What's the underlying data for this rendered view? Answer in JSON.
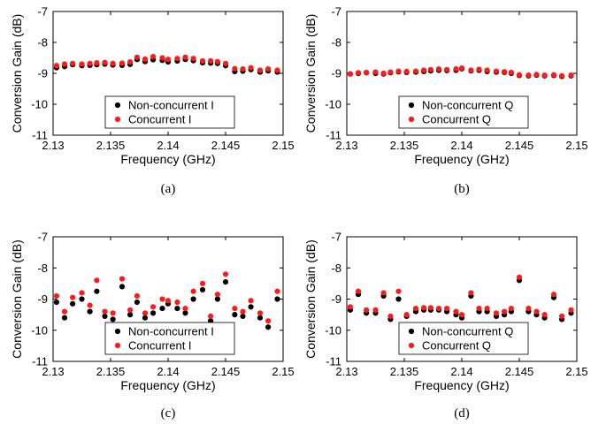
{
  "colors": {
    "series_black": "#000000",
    "series_red": "#ff1a1a"
  },
  "chart_data": [
    {
      "type": "scatter",
      "caption": "(a)",
      "xlabel": "Frequency (GHz)",
      "ylabel": "Conversion Gain (dB)",
      "xlim": [
        2.13,
        2.15
      ],
      "ylim": [
        -11,
        -7
      ],
      "xticks": [
        2.13,
        2.135,
        2.14,
        2.145,
        2.15
      ],
      "xtick_labels": [
        "2.13",
        "2.135",
        "2.14",
        "2.145",
        "2.15"
      ],
      "yticks": [
        -7,
        -8,
        -9,
        -10,
        -11
      ],
      "ytick_labels": [
        "-7",
        "-8",
        "-9",
        "-10",
        "-11"
      ],
      "grid": false,
      "legend_position": "bottom-center",
      "series": [
        {
          "name": "Non-concurrent I",
          "color": "#000000",
          "x": [
            2.1303,
            2.131,
            2.1317,
            2.1325,
            2.1332,
            2.1338,
            2.1345,
            2.1352,
            2.136,
            2.1367,
            2.1373,
            2.138,
            2.1387,
            2.1395,
            2.14,
            2.1408,
            2.1415,
            2.1422,
            2.143,
            2.1437,
            2.1443,
            2.145,
            2.1458,
            2.1465,
            2.1472,
            2.148,
            2.1487,
            2.1495
          ],
          "y": [
            -8.82,
            -8.78,
            -8.72,
            -8.75,
            -8.74,
            -8.72,
            -8.7,
            -8.73,
            -8.74,
            -8.71,
            -8.55,
            -8.62,
            -8.56,
            -8.58,
            -8.63,
            -8.6,
            -8.55,
            -8.59,
            -8.66,
            -8.67,
            -8.68,
            -8.75,
            -8.94,
            -8.93,
            -8.88,
            -8.96,
            -8.92,
            -8.96
          ]
        },
        {
          "name": "Concurrent I",
          "color": "#ff1a1a",
          "x": [
            2.1303,
            2.131,
            2.1317,
            2.1325,
            2.1332,
            2.1338,
            2.1345,
            2.1352,
            2.136,
            2.1367,
            2.1373,
            2.138,
            2.1387,
            2.1395,
            2.14,
            2.1408,
            2.1415,
            2.1422,
            2.143,
            2.1437,
            2.1443,
            2.145,
            2.1458,
            2.1465,
            2.1472,
            2.148,
            2.1487,
            2.1495
          ],
          "y": [
            -8.75,
            -8.7,
            -8.68,
            -8.7,
            -8.68,
            -8.66,
            -8.65,
            -8.68,
            -8.67,
            -8.63,
            -8.48,
            -8.54,
            -8.46,
            -8.5,
            -8.55,
            -8.52,
            -8.48,
            -8.52,
            -8.6,
            -8.6,
            -8.62,
            -8.68,
            -8.85,
            -8.86,
            -8.82,
            -8.9,
            -8.86,
            -8.9
          ]
        }
      ]
    },
    {
      "type": "scatter",
      "caption": "(b)",
      "xlabel": "Frequency (GHz)",
      "ylabel": "Conversion Gain (dB)",
      "xlim": [
        2.13,
        2.15
      ],
      "ylim": [
        -11,
        -7
      ],
      "xticks": [
        2.13,
        2.135,
        2.14,
        2.145,
        2.15
      ],
      "xtick_labels": [
        "2.13",
        "2.135",
        "2.14",
        "2.145",
        "2.15"
      ],
      "yticks": [
        -7,
        -8,
        -9,
        -10,
        -11
      ],
      "ytick_labels": [
        "-7",
        "-8",
        "-9",
        "-10",
        "-11"
      ],
      "grid": false,
      "legend_position": "bottom-center",
      "series": [
        {
          "name": "Non-concurrent Q",
          "color": "#000000",
          "x": [
            2.1303,
            2.131,
            2.1317,
            2.1325,
            2.1332,
            2.1338,
            2.1345,
            2.1352,
            2.136,
            2.1367,
            2.1373,
            2.138,
            2.1387,
            2.1395,
            2.14,
            2.1408,
            2.1415,
            2.1422,
            2.143,
            2.1437,
            2.1443,
            2.145,
            2.1458,
            2.1465,
            2.1472,
            2.148,
            2.1487,
            2.1495
          ],
          "y": [
            -9.02,
            -9.0,
            -8.98,
            -9.0,
            -9.02,
            -8.98,
            -8.95,
            -8.97,
            -8.96,
            -8.94,
            -8.92,
            -8.9,
            -8.91,
            -8.9,
            -8.85,
            -8.92,
            -8.9,
            -8.94,
            -8.96,
            -8.97,
            -9.0,
            -9.07,
            -9.08,
            -9.06,
            -9.08,
            -9.07,
            -9.1,
            -9.08
          ]
        },
        {
          "name": "Concurrent Q",
          "color": "#ff1a1a",
          "x": [
            2.1303,
            2.131,
            2.1317,
            2.1325,
            2.1332,
            2.1338,
            2.1345,
            2.1352,
            2.136,
            2.1367,
            2.1373,
            2.138,
            2.1387,
            2.1395,
            2.14,
            2.1408,
            2.1415,
            2.1422,
            2.143,
            2.1437,
            2.1443,
            2.145,
            2.1458,
            2.1465,
            2.1472,
            2.148,
            2.1487,
            2.1495
          ],
          "y": [
            -9.02,
            -8.98,
            -8.97,
            -8.96,
            -9.0,
            -8.96,
            -8.93,
            -8.94,
            -8.93,
            -8.9,
            -8.88,
            -8.86,
            -8.88,
            -8.86,
            -8.83,
            -8.9,
            -8.87,
            -8.9,
            -8.93,
            -8.95,
            -8.97,
            -9.05,
            -9.06,
            -9.04,
            -9.06,
            -9.05,
            -9.08,
            -9.06
          ]
        }
      ]
    },
    {
      "type": "scatter",
      "caption": "(c)",
      "xlabel": "Frequency (GHz)",
      "ylabel": "Conversion Gain (dB)",
      "xlim": [
        2.13,
        2.15
      ],
      "ylim": [
        -11,
        -7
      ],
      "xticks": [
        2.13,
        2.135,
        2.14,
        2.145,
        2.15
      ],
      "xtick_labels": [
        "2.13",
        "2.135",
        "2.14",
        "2.145",
        "2.15"
      ],
      "yticks": [
        -7,
        -8,
        -9,
        -10,
        -11
      ],
      "ytick_labels": [
        "-7",
        "-8",
        "-9",
        "-10",
        "-11"
      ],
      "grid": false,
      "legend_position": "bottom-center",
      "series": [
        {
          "name": "Non-concurrent I",
          "color": "#000000",
          "x": [
            2.1303,
            2.131,
            2.1317,
            2.1325,
            2.1332,
            2.1338,
            2.1345,
            2.1352,
            2.136,
            2.1367,
            2.1373,
            2.138,
            2.1387,
            2.1395,
            2.14,
            2.1408,
            2.1415,
            2.1422,
            2.143,
            2.1437,
            2.1443,
            2.145,
            2.1458,
            2.1465,
            2.1472,
            2.148,
            2.1487,
            2.1495
          ],
          "y": [
            -9.1,
            -9.6,
            -9.15,
            -9.0,
            -9.4,
            -8.75,
            -9.55,
            -9.65,
            -8.6,
            -9.5,
            -9.1,
            -9.6,
            -9.45,
            -9.3,
            -9.15,
            -9.3,
            -9.45,
            -9.0,
            -8.7,
            -9.7,
            -9.0,
            -8.45,
            -9.5,
            -9.55,
            -9.25,
            -9.6,
            -9.9,
            -9.0
          ]
        },
        {
          "name": "Concurrent I",
          "color": "#ff1a1a",
          "x": [
            2.1303,
            2.131,
            2.1317,
            2.1325,
            2.1332,
            2.1338,
            2.1345,
            2.1352,
            2.136,
            2.1367,
            2.1373,
            2.138,
            2.1387,
            2.1395,
            2.14,
            2.1408,
            2.1415,
            2.1422,
            2.143,
            2.1437,
            2.1443,
            2.145,
            2.1458,
            2.1465,
            2.1472,
            2.148,
            2.1487,
            2.1495
          ],
          "y": [
            -8.9,
            -9.4,
            -8.95,
            -8.8,
            -9.2,
            -8.4,
            -9.4,
            -9.45,
            -8.35,
            -9.35,
            -8.9,
            -9.45,
            -9.25,
            -9.0,
            -9.05,
            -9.1,
            -9.3,
            -8.75,
            -8.5,
            -9.55,
            -8.85,
            -8.2,
            -9.3,
            -9.4,
            -9.05,
            -9.45,
            -9.7,
            -8.75
          ]
        }
      ]
    },
    {
      "type": "scatter",
      "caption": "(d)",
      "xlabel": "Frequency (GHz)",
      "ylabel": "Conversion Gain (dB)",
      "xlim": [
        2.13,
        2.15
      ],
      "ylim": [
        -11,
        -7
      ],
      "xticks": [
        2.13,
        2.135,
        2.14,
        2.145,
        2.15
      ],
      "xtick_labels": [
        "2.13",
        "2.135",
        "2.14",
        "2.145",
        "2.15"
      ],
      "yticks": [
        -7,
        -8,
        -9,
        -10,
        -11
      ],
      "ytick_labels": [
        "-7",
        "-8",
        "-9",
        "-10",
        "-11"
      ],
      "grid": false,
      "legend_position": "bottom-center",
      "series": [
        {
          "name": "Non-concurrent Q",
          "color": "#000000",
          "x": [
            2.1303,
            2.131,
            2.1317,
            2.1325,
            2.1332,
            2.1338,
            2.1345,
            2.1352,
            2.136,
            2.1367,
            2.1373,
            2.138,
            2.1387,
            2.1395,
            2.14,
            2.1408,
            2.1415,
            2.1422,
            2.143,
            2.1437,
            2.1443,
            2.145,
            2.1458,
            2.1465,
            2.1472,
            2.148,
            2.1487,
            2.1495
          ],
          "y": [
            -9.35,
            -8.85,
            -9.45,
            -9.45,
            -8.9,
            -9.65,
            -9.0,
            -9.55,
            -9.4,
            -9.35,
            -9.35,
            -9.35,
            -9.4,
            -9.5,
            -9.6,
            -8.9,
            -9.4,
            -9.4,
            -9.55,
            -9.5,
            -9.4,
            -8.4,
            -9.4,
            -9.5,
            -9.6,
            -8.95,
            -9.65,
            -9.45
          ]
        },
        {
          "name": "Concurrent Q",
          "color": "#ff1a1a",
          "x": [
            2.1303,
            2.131,
            2.1317,
            2.1325,
            2.1332,
            2.1338,
            2.1345,
            2.1352,
            2.136,
            2.1367,
            2.1373,
            2.138,
            2.1387,
            2.1395,
            2.14,
            2.1408,
            2.1415,
            2.1422,
            2.143,
            2.1437,
            2.1443,
            2.145,
            2.1458,
            2.1465,
            2.1472,
            2.148,
            2.1487,
            2.1495
          ],
          "y": [
            -9.25,
            -8.75,
            -9.35,
            -9.35,
            -8.8,
            -9.55,
            -8.75,
            -9.5,
            -9.3,
            -9.28,
            -9.28,
            -9.3,
            -9.3,
            -9.4,
            -9.5,
            -8.8,
            -9.3,
            -9.3,
            -9.45,
            -9.4,
            -9.3,
            -8.3,
            -9.3,
            -9.4,
            -9.5,
            -8.85,
            -9.55,
            -9.35
          ]
        }
      ]
    }
  ]
}
